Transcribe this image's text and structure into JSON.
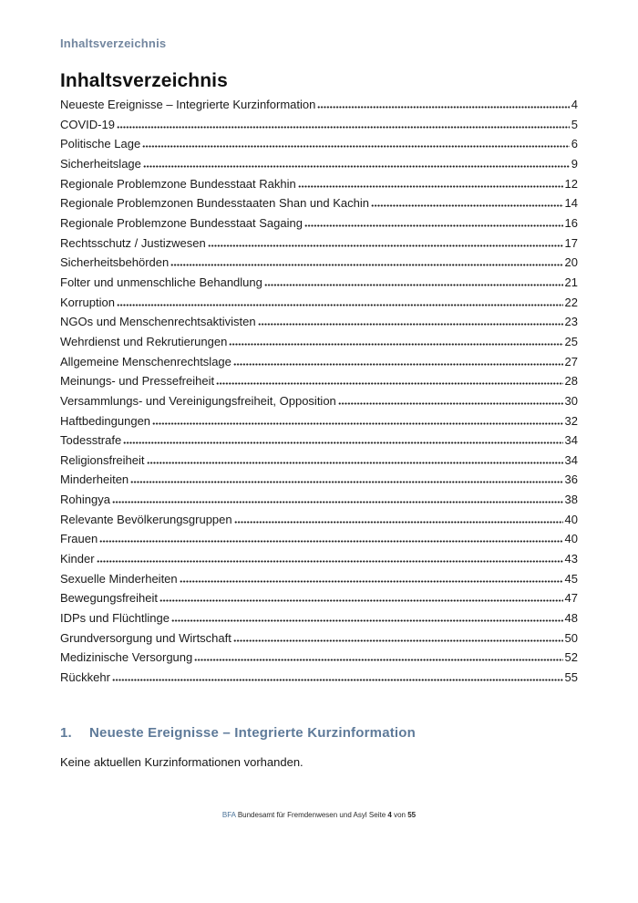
{
  "header": {
    "text": "Inhaltsverzeichnis"
  },
  "title": "Inhaltsverzeichnis",
  "toc": [
    {
      "label": "Neueste Ereignisse – Integrierte Kurzinformation",
      "page": "4"
    },
    {
      "label": "COVID-19",
      "page": "5"
    },
    {
      "label": "Politische Lage",
      "page": "6"
    },
    {
      "label": "Sicherheitslage",
      "page": "9"
    },
    {
      "label": "Regionale Problemzone Bundesstaat Rakhin",
      "page": "12"
    },
    {
      "label": "Regionale Problemzonen Bundesstaaten Shan und Kachin",
      "page": "14"
    },
    {
      "label": "Regionale Problemzone Bundesstaat Sagaing",
      "page": "16"
    },
    {
      "label": "Rechtsschutz / Justizwesen",
      "page": "17"
    },
    {
      "label": "Sicherheitsbehörden",
      "page": "20"
    },
    {
      "label": "Folter und unmenschliche Behandlung",
      "page": "21"
    },
    {
      "label": "Korruption",
      "page": "22"
    },
    {
      "label": "NGOs und Menschenrechtsaktivisten",
      "page": "23"
    },
    {
      "label": "Wehrdienst und Rekrutierungen",
      "page": "25"
    },
    {
      "label": "Allgemeine Menschenrechtslage",
      "page": "27"
    },
    {
      "label": "Meinungs- und Pressefreiheit",
      "page": "28"
    },
    {
      "label": "Versammlungs- und Vereinigungsfreiheit, Opposition",
      "page": "30"
    },
    {
      "label": "Haftbedingungen",
      "page": "32"
    },
    {
      "label": "Todesstrafe",
      "page": "34"
    },
    {
      "label": "Religionsfreiheit",
      "page": "34"
    },
    {
      "label": "Minderheiten",
      "page": "36"
    },
    {
      "label": "Rohingya",
      "page": "38"
    },
    {
      "label": "Relevante Bevölkerungsgruppen",
      "page": "40"
    },
    {
      "label": "Frauen",
      "page": "40"
    },
    {
      "label": "Kinder",
      "page": "43"
    },
    {
      "label": "Sexuelle Minderheiten",
      "page": "45"
    },
    {
      "label": "Bewegungsfreiheit",
      "page": "47"
    },
    {
      "label": "IDPs und Flüchtlinge",
      "page": "48"
    },
    {
      "label": "Grundversorgung und Wirtschaft",
      "page": "50"
    },
    {
      "label": "Medizinische Versorgung",
      "page": "52"
    },
    {
      "label": "Rückkehr",
      "page": "55"
    }
  ],
  "section": {
    "number": "1.",
    "title": "Neueste Ereignisse – Integrierte Kurzinformation",
    "body": "Keine aktuellen Kurzinformationen vorhanden."
  },
  "footer": {
    "logo": "BFA",
    "org": "Bundesamt für Fremdenwesen und Asyl",
    "page_label": "Seite",
    "page_current": "4",
    "of_label": "von",
    "page_total": "55"
  },
  "colors": {
    "header_blue": "#72869f",
    "section_blue": "#5e7a99",
    "footer_logo_blue": "#4a7298",
    "text": "#1a1a1a"
  }
}
